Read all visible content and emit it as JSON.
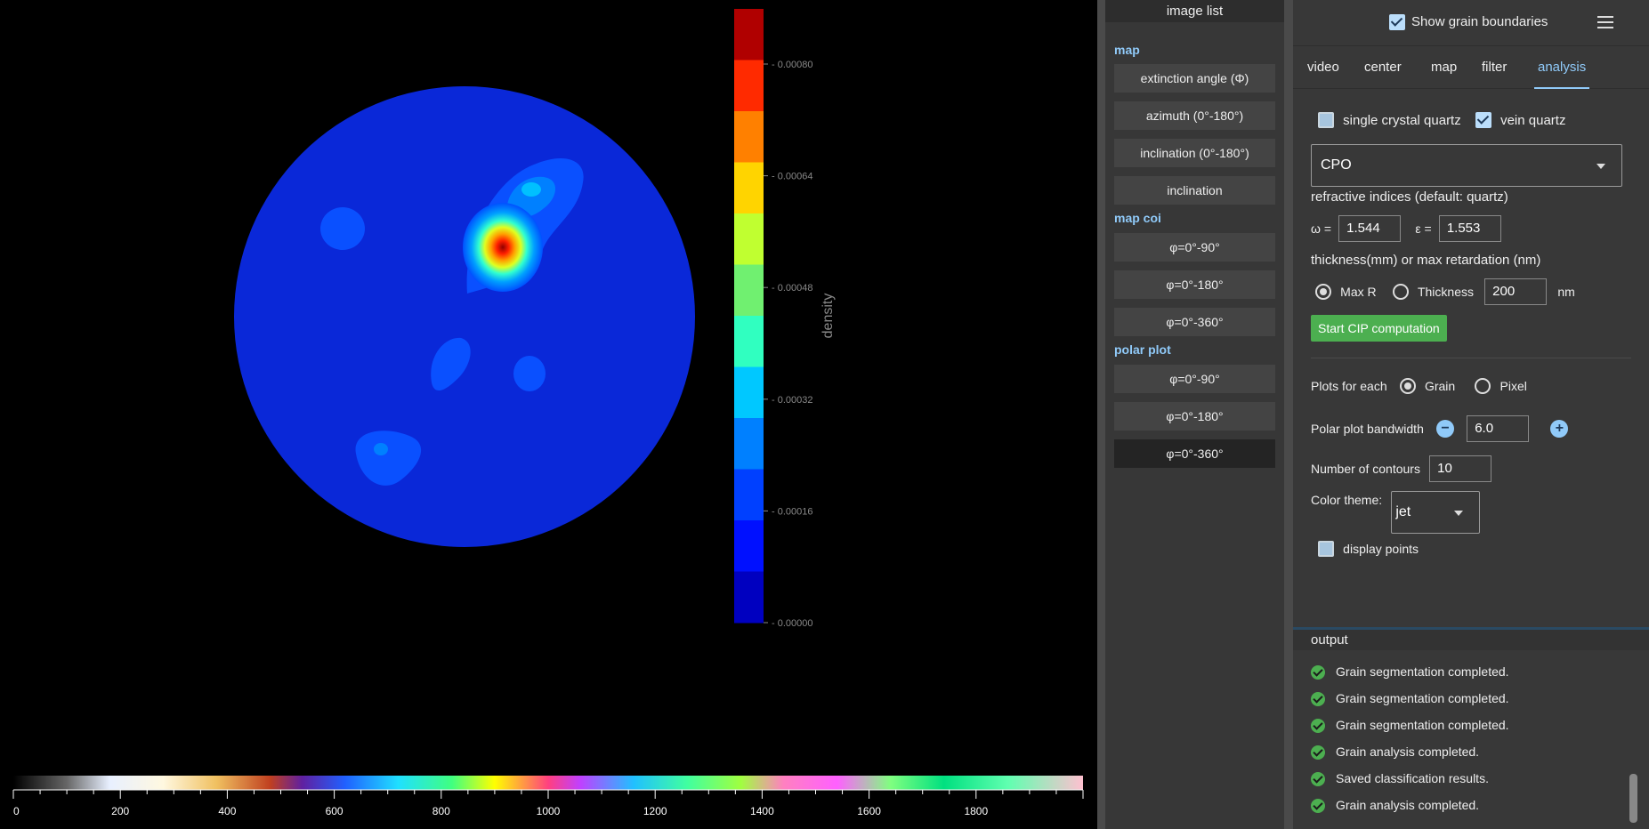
{
  "colorbar": {
    "label": "density",
    "ticks": [
      "0.00080",
      "0.00064",
      "0.00048",
      "0.00032",
      "0.00016",
      "0.00000"
    ],
    "colors": [
      "#b00000",
      "#ff2a00",
      "#ff8000",
      "#ffd400",
      "#c0ff30",
      "#70f070",
      "#30ffc0",
      "#00c8ff",
      "#0080ff",
      "#0040ff",
      "#0010ff",
      "#0000c0"
    ]
  },
  "retardation_scale": {
    "ticks": [
      "0",
      "200",
      "400",
      "600",
      "800",
      "1000",
      "1200",
      "1400",
      "1600",
      "1800"
    ]
  },
  "image_list": {
    "header": "image list",
    "sections": [
      {
        "label": "map",
        "items": [
          "extinction angle (Φ)",
          "azimuth (0°-180°)",
          "inclination (0°-180°)",
          "inclination"
        ]
      },
      {
        "label": "map coi",
        "items": [
          "φ=0°-90°",
          "φ=0°-180°",
          "φ=0°-360°"
        ]
      },
      {
        "label": "polar plot",
        "items": [
          "φ=0°-90°",
          "φ=0°-180°",
          "φ=0°-360°"
        ]
      }
    ]
  },
  "topbar": {
    "show_grain_boundaries": "Show grain boundaries",
    "menu_icon": "hamburger-menu-icon"
  },
  "tabs": [
    "video",
    "center",
    "map",
    "filter",
    "analysis"
  ],
  "analysis": {
    "single_crystal_quartz": "single crystal quartz",
    "vein_quartz": "vein quartz",
    "mode_value": "CPO",
    "refractive_label": "refractive indices (default: quartz)",
    "omega_label": "ω =",
    "omega_value": "1.544",
    "epsilon_label": "ε =",
    "epsilon_value": "1.553",
    "thickness_label": "thickness(mm) or max retardation (nm)",
    "max_r": "Max R",
    "thickness": "Thickness",
    "thickness_value": "200",
    "unit": "nm",
    "start_button": "Start CIP computation",
    "plots_for_each": "Plots for each",
    "grain": "Grain",
    "pixel": "Pixel",
    "bandwidth_label": "Polar plot bandwidth",
    "bandwidth_value": "6.0",
    "contours_label": "Number of contours",
    "contours_value": "10",
    "color_theme_label": "Color theme:",
    "color_theme_value": "jet",
    "display_points": "display points"
  },
  "output": {
    "header": "output",
    "items": [
      "Grain segmentation completed.",
      "Grain segmentation completed.",
      "Grain segmentation completed.",
      "Grain analysis completed.",
      "Saved classification results.",
      "Grain analysis completed."
    ]
  }
}
